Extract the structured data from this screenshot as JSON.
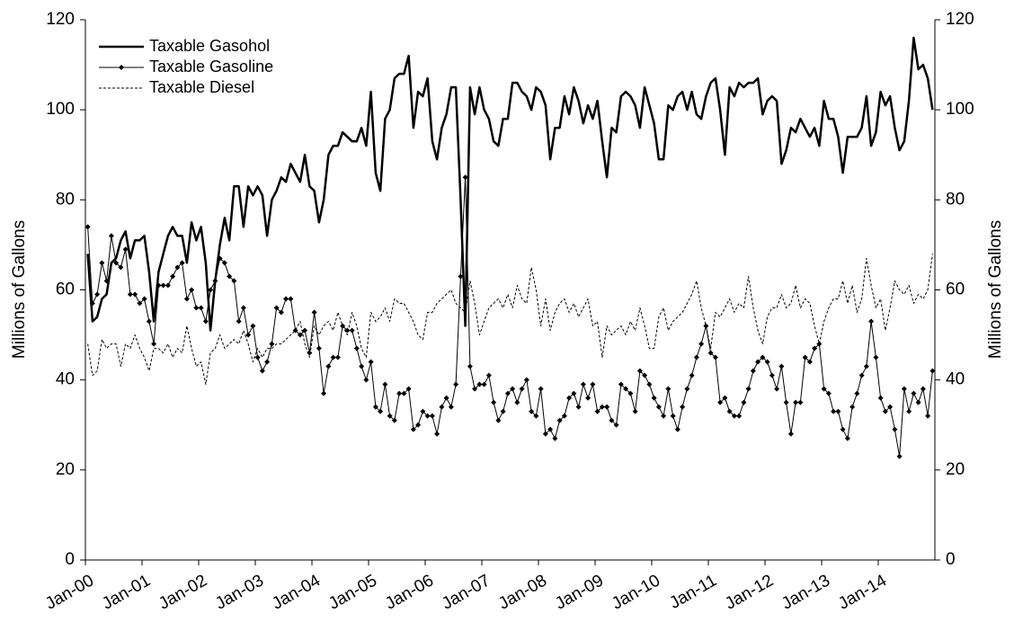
{
  "chart_data": {
    "type": "line",
    "y_label": "Millions of Gallons",
    "y2_label": "Millions of Gallons",
    "legend": "top-left",
    "ylim": [
      0,
      120
    ],
    "yticks": [
      0,
      20,
      40,
      60,
      80,
      100,
      120
    ],
    "y2lim": [
      0,
      120
    ],
    "y2ticks": [
      0,
      20,
      40,
      60,
      80,
      100,
      120
    ],
    "categories": [
      "Jan-00",
      null,
      null,
      null,
      null,
      null,
      null,
      null,
      null,
      null,
      null,
      null,
      "Jan-01",
      null,
      null,
      null,
      null,
      null,
      null,
      null,
      null,
      null,
      null,
      null,
      "Jan-02",
      null,
      null,
      null,
      null,
      null,
      null,
      null,
      null,
      null,
      null,
      null,
      "Jan-03",
      null,
      null,
      null,
      null,
      null,
      null,
      null,
      null,
      null,
      null,
      null,
      "Jan-04",
      null,
      null,
      null,
      null,
      null,
      null,
      null,
      null,
      null,
      null,
      null,
      "Jan-05",
      null,
      null,
      null,
      null,
      null,
      null,
      null,
      null,
      null,
      null,
      null,
      "Jan-06",
      null,
      null,
      null,
      null,
      null,
      null,
      null,
      null,
      null,
      null,
      null,
      "Jan-07",
      null,
      null,
      null,
      null,
      null,
      null,
      null,
      null,
      null,
      null,
      null,
      "Jan-08",
      null,
      null,
      null,
      null,
      null,
      null,
      null,
      null,
      null,
      null,
      null,
      "Jan-09",
      null,
      null,
      null,
      null,
      null,
      null,
      null,
      null,
      null,
      null,
      null,
      "Jan-10",
      null,
      null,
      null,
      null,
      null,
      null,
      null,
      null,
      null,
      null,
      null,
      "Jan-11",
      null,
      null,
      null,
      null,
      null,
      null,
      null,
      null,
      null,
      null,
      null,
      "Jan-12",
      null,
      null,
      null,
      null,
      null,
      null,
      null,
      null,
      null,
      null,
      null,
      "Jan-13",
      null,
      null,
      null,
      null,
      null,
      null,
      null,
      null,
      null,
      null,
      null,
      "Jan-14",
      null,
      null,
      null,
      null,
      null,
      null,
      null,
      null,
      null,
      null,
      null
    ],
    "series": [
      {
        "name": "Taxable Gasohol",
        "color": "#000000",
        "line_width": 2.5,
        "dash": "none",
        "marker": "none",
        "values": [
          68,
          53,
          54,
          58,
          59,
          66,
          67,
          71,
          73,
          67,
          71,
          71,
          72,
          64,
          53,
          64,
          68,
          72,
          74,
          72,
          72,
          66,
          75,
          71,
          74,
          66,
          51,
          62,
          70,
          76,
          71,
          83,
          83,
          74,
          83,
          81,
          83,
          81,
          72,
          80,
          82,
          85,
          84,
          88,
          86,
          84,
          90,
          83,
          82,
          75,
          80,
          90,
          92,
          92,
          95,
          94,
          93,
          93,
          96,
          92,
          104,
          86,
          82,
          98,
          100,
          107,
          108,
          108,
          112,
          96,
          104,
          103,
          107,
          93,
          89,
          96,
          99,
          105,
          105,
          80,
          52,
          105,
          99,
          105,
          100,
          98,
          93,
          92,
          98,
          98,
          106,
          106,
          104,
          103,
          100,
          105,
          104,
          101,
          89,
          96,
          96,
          103,
          99,
          105,
          102,
          97,
          101,
          98,
          102,
          93,
          85,
          96,
          95,
          103,
          104,
          103,
          101,
          96,
          105,
          101,
          97,
          89,
          89,
          101,
          100,
          103,
          104,
          100,
          104,
          99,
          98,
          103,
          106,
          107,
          100,
          90,
          105,
          103,
          106,
          105,
          106,
          106,
          107,
          99,
          102,
          103,
          102,
          88,
          91,
          96,
          95,
          98,
          96,
          94,
          96,
          92,
          102,
          98,
          98,
          94,
          86,
          94,
          94,
          94,
          96,
          103,
          92,
          95,
          104,
          101,
          103,
          96,
          91,
          93,
          102,
          116,
          109,
          110,
          107,
          100
        ]
      },
      {
        "name": "Taxable Gasoline",
        "color": "#000000",
        "line_width": 1,
        "dash": "none",
        "marker": "diamond",
        "values": [
          74,
          57,
          59,
          66,
          62,
          72,
          66,
          65,
          69,
          59,
          59,
          57,
          58,
          53,
          48,
          61,
          61,
          61,
          63,
          65,
          66,
          58,
          60,
          56,
          56,
          53,
          60,
          62,
          67,
          66,
          63,
          62,
          53,
          56,
          50,
          52,
          45,
          42,
          44,
          48,
          56,
          55,
          58,
          58,
          51,
          50,
          51,
          46,
          55,
          47,
          37,
          43,
          45,
          45,
          52,
          51,
          51,
          47,
          43,
          40,
          44,
          34,
          33,
          39,
          32,
          31,
          37,
          37,
          38,
          29,
          30,
          33,
          32,
          32,
          28,
          34,
          36,
          34,
          39,
          63,
          85,
          43,
          38,
          39,
          39,
          41,
          35,
          31,
          33,
          37,
          38,
          35,
          38,
          40,
          33,
          32,
          38,
          28,
          29,
          27,
          31,
          32,
          36,
          37,
          34,
          39,
          36,
          39,
          33,
          34,
          34,
          31,
          30,
          39,
          38,
          37,
          33,
          42,
          41,
          39,
          36,
          34,
          32,
          38,
          32,
          29,
          34,
          38,
          41,
          45,
          48,
          52,
          46,
          45,
          35,
          36,
          33,
          32,
          32,
          35,
          38,
          42,
          44,
          45,
          44,
          41,
          38,
          43,
          35,
          28,
          35,
          35,
          45,
          44,
          47,
          48,
          38,
          37,
          33,
          33,
          29,
          27,
          34,
          37,
          41,
          43,
          53,
          45,
          36,
          33,
          34,
          29,
          23,
          38,
          33,
          37,
          35,
          38,
          32,
          42
        ]
      },
      {
        "name": "Taxable Diesel",
        "color": "#000000",
        "line_width": 1,
        "dash": "3,2",
        "marker": "none",
        "values": [
          48,
          41,
          42,
          49,
          47,
          48,
          48,
          43,
          48,
          47,
          50,
          47,
          45,
          42,
          47,
          47,
          46,
          48,
          45,
          47,
          46,
          52,
          47,
          43,
          44,
          39,
          46,
          47,
          50,
          47,
          48,
          49,
          48,
          51,
          48,
          44,
          47,
          45,
          47,
          47,
          48,
          48,
          49,
          50,
          51,
          53,
          48,
          45,
          52,
          50,
          52,
          53,
          51,
          55,
          52,
          50,
          55,
          52,
          47,
          45,
          55,
          53,
          54,
          56,
          53,
          58,
          57,
          57,
          55,
          53,
          50,
          49,
          55,
          55,
          57,
          58,
          59,
          60,
          57,
          56,
          55,
          62,
          57,
          50,
          53,
          56,
          57,
          58,
          56,
          59,
          56,
          61,
          58,
          57,
          65,
          60,
          52,
          58,
          51,
          55,
          57,
          58,
          55,
          57,
          54,
          56,
          58,
          52,
          53,
          45,
          52,
          50,
          51,
          52,
          50,
          53,
          51,
          56,
          52,
          47,
          47,
          54,
          56,
          51,
          53,
          54,
          55,
          57,
          59,
          62,
          56,
          52,
          47,
          55,
          54,
          56,
          58,
          55,
          57,
          56,
          63,
          56,
          51,
          48,
          54,
          56,
          56,
          59,
          56,
          57,
          61,
          56,
          58,
          57,
          52,
          48,
          53,
          56,
          58,
          58,
          62,
          57,
          61,
          55,
          58,
          67,
          61,
          56,
          58,
          51,
          56,
          62,
          60,
          59,
          61,
          57,
          59,
          58,
          60,
          68
        ]
      }
    ]
  }
}
